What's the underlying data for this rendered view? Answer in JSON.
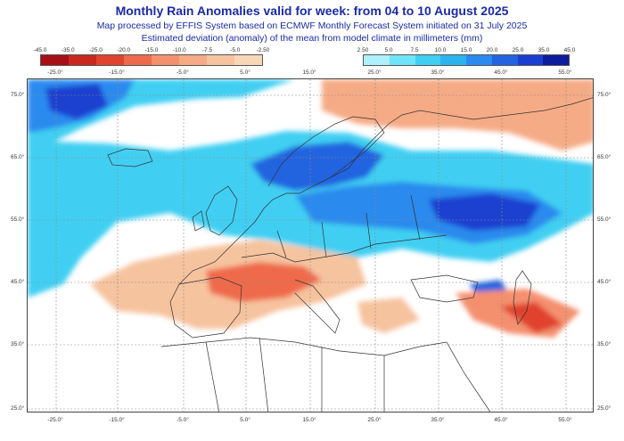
{
  "title": "Monthly Rain Anomalies valid for week: from 04 to 10 August 2025",
  "subtitle1": "Map processed by EFFIS System based on ECMWF Monthly Forecast System initiated on 31 July 2025",
  "subtitle2": "Estimated deviation (anomaly) of the mean from model climate in millimeters (mm)",
  "legend_neg": {
    "labels": [
      "-45.0",
      "-35.0",
      "-25.0",
      "-20.0",
      "-15.0",
      "-10.0",
      "-7.5",
      "-5.0",
      "-2.50"
    ],
    "colors": [
      "#a50f15",
      "#c8281e",
      "#e0432e",
      "#ef6a4c",
      "#f4906e",
      "#f5ab86",
      "#f6c39f",
      "#f8d7b9"
    ]
  },
  "legend_pos": {
    "labels": [
      "2.50",
      "5.0",
      "7.5",
      "10.0",
      "15.0",
      "20.0",
      "25.0",
      "35.0",
      "45.0"
    ],
    "colors": [
      "#aef0fb",
      "#6ee4f8",
      "#3fcff2",
      "#2db2f0",
      "#2a8aee",
      "#2364e0",
      "#1a3fd0",
      "#0c1d9e"
    ]
  },
  "lon_ticks_top": [
    "-25.0°",
    "-15.0°",
    "-5.0°",
    "5.0°",
    "15.0°",
    "25.0°",
    "35.0°",
    "45.0°",
    "55.0°"
  ],
  "lon_ticks_bottom": [
    "-25.0°",
    "-15.0°",
    "-5.0°",
    "5.0°",
    "15.0°",
    "25.0°",
    "35.0°",
    "45.0°",
    "55.0°"
  ],
  "lat_ticks": [
    "75.0°",
    "65.0°",
    "55.0°",
    "45.0°",
    "35.0°",
    "25.0°"
  ],
  "colors": {
    "title": "#1a2aa8",
    "land_outline": "#333333",
    "grid": "#8a8a8a"
  }
}
